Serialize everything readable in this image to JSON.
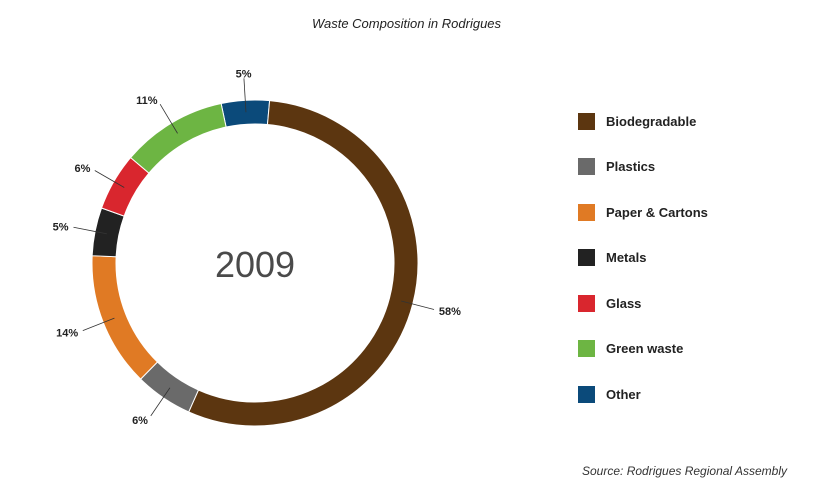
{
  "chart_data": {
    "type": "pie",
    "title": "Waste Composition in Rodrigues",
    "center_label": "2009",
    "source": "Source: Rodrigues Regional Assembly",
    "legend_position": "right",
    "slices": [
      {
        "name": "Other",
        "value": 5,
        "label": "5%",
        "color": "#0b4a7a"
      },
      {
        "name": "Biodegradable",
        "value": 58,
        "label": "58%",
        "color": "#5c3610"
      },
      {
        "name": "Plastics",
        "value": 6,
        "label": "6%",
        "color": "#6a6a6a"
      },
      {
        "name": "Paper & Cartons",
        "value": 14,
        "label": "14%",
        "color": "#e07a24"
      },
      {
        "name": "Metals",
        "value": 5,
        "label": "5%",
        "color": "#222222"
      },
      {
        "name": "Glass",
        "value": 6,
        "label": "6%",
        "color": "#d9262e"
      },
      {
        "name": "Green waste",
        "value": 11,
        "label": "11%",
        "color": "#6db543"
      }
    ],
    "legend": [
      {
        "name": "Biodegradable",
        "color": "#5c3610"
      },
      {
        "name": "Plastics",
        "color": "#6a6a6a"
      },
      {
        "name": "Paper & Cartons",
        "color": "#e07a24"
      },
      {
        "name": "Metals",
        "color": "#222222"
      },
      {
        "name": "Glass",
        "color": "#d9262e"
      },
      {
        "name": "Green waste",
        "color": "#6db543"
      },
      {
        "name": "Other",
        "color": "#0b4a7a"
      }
    ]
  }
}
